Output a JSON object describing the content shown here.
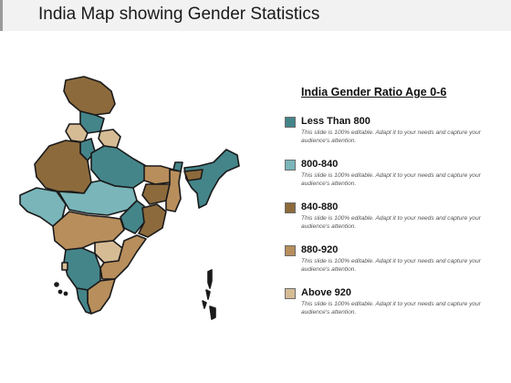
{
  "page": {
    "title": "India Map showing Gender Statistics"
  },
  "legend": {
    "heading": "India Gender Ratio Age 0-6",
    "items": [
      {
        "label": "Less Than 800",
        "color": "#44858a",
        "description": "This slide is 100% editable. Adapt it to your needs and capture your audience's attention."
      },
      {
        "label": "800-840",
        "color": "#79b5b9",
        "description": "This slide is 100% editable. Adapt it to your needs and capture your audience's attention."
      },
      {
        "label": "840-880",
        "color": "#8c6a3c",
        "description": "This slide is 100% editable. Adapt it to your needs and capture your audience's attention."
      },
      {
        "label": "880-920",
        "color": "#b88e5c",
        "description": "This slide is 100% editable. Adapt it to your needs and capture your audience's attention."
      },
      {
        "label": "Above 920",
        "color": "#d6bc95",
        "description": "This slide is 100% editable. Adapt it to your needs and capture your audience's attention."
      }
    ]
  },
  "colors": {
    "border": "#1a1a1a",
    "title_bar": "#f2f2f2"
  }
}
